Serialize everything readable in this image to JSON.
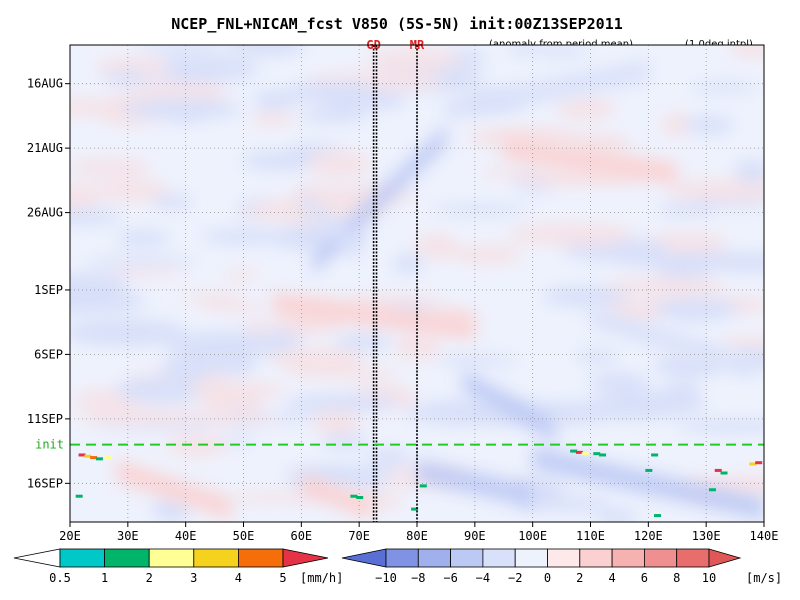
{
  "chart_data": {
    "type": "heatmap",
    "title": "NCEP_FNL+NICAM_fcst V850 (5S-5N) init:00Z13SEP2011",
    "subtitle_left": "(anomaly from period mean)",
    "subtitle_right": "(1.0deg intpl)",
    "x_ticks": [
      {
        "lon": 20,
        "label": "20E"
      },
      {
        "lon": 30,
        "label": "30E"
      },
      {
        "lon": 40,
        "label": "40E"
      },
      {
        "lon": 50,
        "label": "50E"
      },
      {
        "lon": 60,
        "label": "60E"
      },
      {
        "lon": 70,
        "label": "70E"
      },
      {
        "lon": 80,
        "label": "80E"
      },
      {
        "lon": 90,
        "label": "90E"
      },
      {
        "lon": 100,
        "label": "100E"
      },
      {
        "lon": 110,
        "label": "110E"
      },
      {
        "lon": 120,
        "label": "120E"
      },
      {
        "lon": 130,
        "label": "130E"
      },
      {
        "lon": 140,
        "label": "140E"
      }
    ],
    "xlim": [
      20,
      140
    ],
    "y_ticks": [
      {
        "day": 3,
        "label": "16AUG"
      },
      {
        "day": 8,
        "label": "21AUG"
      },
      {
        "day": 13,
        "label": "26AUG"
      },
      {
        "day": 19,
        "label": "1SEP"
      },
      {
        "day": 24,
        "label": "6SEP"
      },
      {
        "day": 29,
        "label": "11SEP"
      },
      {
        "day": 34,
        "label": "16SEP"
      }
    ],
    "ylim": [
      0,
      37
    ],
    "init_line": {
      "day": 31,
      "label": "init"
    },
    "markers": [
      {
        "lon": 72.5,
        "label": "GD"
      },
      {
        "lon": 73.0,
        "label": ""
      },
      {
        "lon": 80.0,
        "label": "MR"
      }
    ],
    "v850_colorbar": {
      "unit": "[m/s]",
      "labels": [
        "-10",
        "-8",
        "-6",
        "-4",
        "-2",
        "0",
        "2",
        "4",
        "6",
        "8",
        "10"
      ],
      "colors": [
        "#5a6fd6",
        "#7f92e3",
        "#9fb0ec",
        "#bcc9f4",
        "#d9e1fa",
        "#eef2fd",
        "#fde9e9",
        "#fbd0d0",
        "#f6b1b1",
        "#f08f8f",
        "#e86e6e",
        "#e05757"
      ]
    },
    "precip_colorbar": {
      "unit": "[mm/h]",
      "labels": [
        "0.5",
        "1",
        "2",
        "3",
        "4",
        "5"
      ],
      "colors": [
        "#00c8c8",
        "#00b469",
        "#ffff96",
        "#f5d21e",
        "#f56e0a",
        "#e63246"
      ]
    },
    "anomaly_features": [
      {
        "lon0": 62,
        "lon1": 85,
        "d0": 17,
        "d1": 7,
        "value": -6
      },
      {
        "lon0": 85,
        "lon1": 120,
        "d0": 5,
        "d1": 2,
        "value": -4
      },
      {
        "lon0": 95,
        "lon1": 125,
        "d0": 8,
        "d1": 10,
        "value": 3
      },
      {
        "lon0": 60,
        "lon1": 70,
        "d0": 12,
        "d1": 16,
        "value": -3
      },
      {
        "lon0": 55,
        "lon1": 90,
        "d0": 20,
        "d1": 22,
        "value": 3
      },
      {
        "lon0": 110,
        "lon1": 138,
        "d0": 21,
        "d1": 25,
        "value": -4
      },
      {
        "lon0": 88,
        "lon1": 104,
        "d0": 26,
        "d1": 30,
        "value": -5
      },
      {
        "lon0": 100,
        "lon1": 140,
        "d0": 32,
        "d1": 36,
        "value": -6
      },
      {
        "lon0": 28,
        "lon1": 48,
        "d0": 33,
        "d1": 36,
        "value": 3
      },
      {
        "lon0": 80,
        "lon1": 100,
        "d0": 33,
        "d1": 35,
        "value": -5
      },
      {
        "lon0": 60,
        "lon1": 72,
        "d0": 34,
        "d1": 36,
        "value": 3
      }
    ],
    "precip_points": [
      {
        "lon": 22,
        "day": 31.8,
        "value": 5
      },
      {
        "lon": 23,
        "day": 31.9,
        "value": 3
      },
      {
        "lon": 24,
        "day": 32.0,
        "value": 4
      },
      {
        "lon": 25,
        "day": 32.1,
        "value": 1
      },
      {
        "lon": 26.5,
        "day": 32.0,
        "value": 2
      },
      {
        "lon": 21.5,
        "day": 35.0,
        "value": 1
      },
      {
        "lon": 69,
        "day": 35.0,
        "value": 1
      },
      {
        "lon": 70,
        "day": 35.1,
        "value": 1
      },
      {
        "lon": 81,
        "day": 34.2,
        "value": 1
      },
      {
        "lon": 79.5,
        "day": 36.0,
        "value": 1
      },
      {
        "lon": 107,
        "day": 31.5,
        "value": 1
      },
      {
        "lon": 108,
        "day": 31.6,
        "value": 5
      },
      {
        "lon": 109,
        "day": 31.7,
        "value": 2
      },
      {
        "lon": 111,
        "day": 31.7,
        "value": 1
      },
      {
        "lon": 112,
        "day": 31.8,
        "value": 1
      },
      {
        "lon": 120,
        "day": 33.0,
        "value": 1
      },
      {
        "lon": 121,
        "day": 31.8,
        "value": 1
      },
      {
        "lon": 121.5,
        "day": 36.5,
        "value": 1
      },
      {
        "lon": 131,
        "day": 34.5,
        "value": 1
      },
      {
        "lon": 132,
        "day": 33.0,
        "value": 5
      },
      {
        "lon": 133,
        "day": 33.2,
        "value": 1
      },
      {
        "lon": 138,
        "day": 32.5,
        "value": 3
      },
      {
        "lon": 139,
        "day": 32.4,
        "value": 5
      }
    ]
  }
}
